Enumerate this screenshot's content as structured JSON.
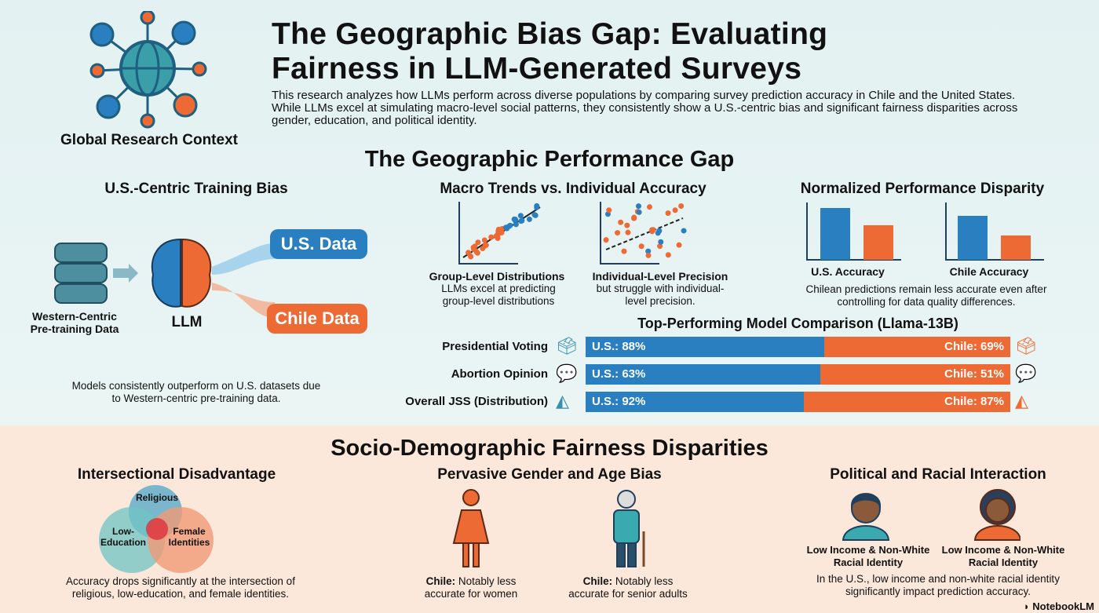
{
  "header": {
    "title_line1": "The Geographic Bias Gap: Evaluating",
    "title_line2": "Fairness in LLM-Generated Surveys",
    "intro": "This research analyzes how LLMs perform across diverse populations by comparing survey prediction accuracy in Chile and the United States. While LLMs excel at simulating macro-level social patterns, they consistently show a U.S.-centric bias and significant fairness disparities across gender, education, and political identity.",
    "logo_label": "Global Research Context"
  },
  "geo": {
    "title": "The Geographic Performance Gap",
    "training": {
      "title": "U.S.-Centric Training Bias",
      "db_label": "Western-Centric Pre-training Data",
      "llm_label": "LLM",
      "us_pill": "U.S. Data",
      "chile_pill": "Chile Data",
      "caption": "Models consistently outperform on U.S. datasets due to Western-centric pre-training data."
    },
    "macro": {
      "title": "Macro Trends vs. Individual Accuracy",
      "left_title": "Group-Level Distributions",
      "left_caption": "LLMs excel at predicting group-level distributions",
      "right_title": "Individual-Level Precision",
      "right_caption": "but struggle with individual-level precision."
    },
    "disparity": {
      "title": "Normalized Performance Disparity",
      "us_label": "U.S. Accuracy",
      "chile_label": "Chile Accuracy",
      "caption": "Chilean predictions remain less accurate even after controlling for data quality differences."
    },
    "comparison": {
      "title": "Top-Performing Model Comparison (Llama-13B)",
      "rows": [
        {
          "label": "Presidential Voting",
          "icon": "ballot-box-icon",
          "us": 88,
          "chile": 69,
          "us_text": "U.S.: 88%",
          "chile_text": "Chile: 69%"
        },
        {
          "label": "Abortion Opinion",
          "icon": "speech-bubbles-icon",
          "us": 63,
          "chile": 51,
          "us_text": "U.S.: 63%",
          "chile_text": "Chile: 51%"
        },
        {
          "label": "Overall JSS (Distribution)",
          "icon": "distribution-curve-icon",
          "us": 92,
          "chile": 87,
          "us_text": "U.S.: 92%",
          "chile_text": "Chile: 87%"
        }
      ]
    }
  },
  "fair": {
    "title": "Socio-Demographic Fairness Disparities",
    "inter": {
      "title": "Intersectional Disadvantage",
      "religious": "Religious",
      "low_edu": "Low-Education",
      "female": "Female Identities",
      "caption": "Accuracy drops significantly at the intersection of religious, low-education, and female identities."
    },
    "gender": {
      "title": "Pervasive Gender and Age Bias",
      "women_bold": "Chile:",
      "women_text": "Notably less accurate for women",
      "senior_bold": "Chile:",
      "senior_text": "Notably less accurate for senior adults"
    },
    "political": {
      "title": "Political and Racial Interaction",
      "label1": "Low Income & Non-White Racial Identity",
      "label2": "Low Income & Non-White Racial Identity",
      "caption": "In the U.S., low income and non-white racial identity significantly impact prediction accuracy."
    }
  },
  "footer": {
    "brand": "NotebookLM"
  },
  "colors": {
    "blue": "#2a7fc0",
    "orange": "#ee6a35",
    "teal": "#5fbfbf"
  }
}
